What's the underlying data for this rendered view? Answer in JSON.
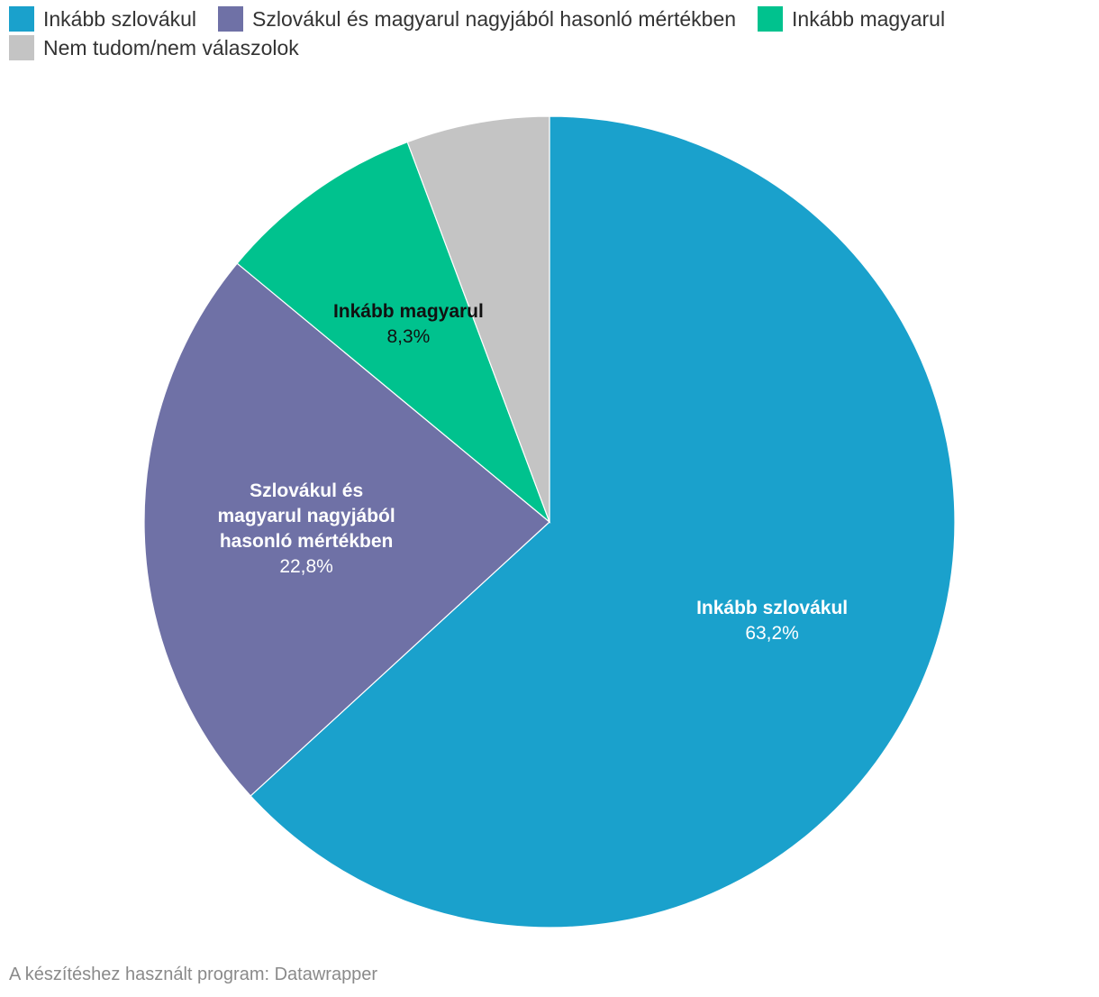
{
  "chart_data": {
    "type": "pie",
    "title": "",
    "slices": [
      {
        "label": "Inkább szlovákul",
        "value": 63.2,
        "value_label": "63,2%",
        "color": "#1aa1cc",
        "label_color": "#ffffff",
        "show_label": true,
        "label_lines": [
          "Inkább szlovákul"
        ]
      },
      {
        "label": "Szlovákul és magyarul nagyjából hasonló mértékben",
        "value": 22.8,
        "value_label": "22,8%",
        "color": "#6f71a6",
        "label_color": "#ffffff",
        "show_label": true,
        "label_lines": [
          "Szlovákul és",
          "magyarul nagyjából",
          "hasonló mértékben"
        ]
      },
      {
        "label": "Inkább magyarul",
        "value": 8.3,
        "value_label": "8,3%",
        "color": "#00c28e",
        "label_color": "#111111",
        "show_label": true,
        "label_lines": [
          "Inkább magyarul"
        ]
      },
      {
        "label": "Nem tudom/nem válaszolok",
        "value": 5.7,
        "value_label": "",
        "color": "#c4c4c4",
        "label_color": "#111111",
        "show_label": false,
        "label_lines": []
      }
    ],
    "legend": {
      "position": "top-left",
      "items": [
        {
          "label": "Inkább szlovákul",
          "color": "#1aa1cc"
        },
        {
          "label": "Szlovákul és magyarul nagyjából hasonló mértékben",
          "color": "#6f71a6"
        },
        {
          "label": "Inkább magyarul",
          "color": "#00c28e"
        },
        {
          "label": "Nem tudom/nem válaszolok",
          "color": "#c4c4c4"
        }
      ]
    }
  },
  "footer": {
    "credit": "A készítéshez használt program: Datawrapper"
  }
}
